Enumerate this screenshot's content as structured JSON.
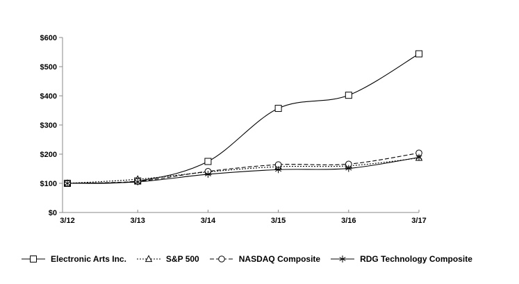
{
  "chart_data": {
    "type": "line",
    "title": "",
    "x_labels": [
      "3/12",
      "3/13",
      "3/14",
      "3/15",
      "3/16",
      "3/17"
    ],
    "y_ticks": [
      0,
      100,
      200,
      300,
      400,
      500,
      600
    ],
    "y_tick_prefix": "$",
    "ylim": [
      0,
      600
    ],
    "grid": false,
    "legend_position": "bottom",
    "colors": {
      "axis": "#888888",
      "line": "#000000",
      "text": "#000000",
      "marker_fill": "#ffffff"
    },
    "series": [
      {
        "name": "Electronic Arts Inc.",
        "marker": "square",
        "line_style": "solid",
        "values": [
          100,
          108,
          175,
          357,
          402,
          544
        ]
      },
      {
        "name": "S&P 500",
        "marker": "triangle",
        "line_style": "dotted",
        "values": [
          100,
          114,
          139,
          157,
          160,
          187
        ]
      },
      {
        "name": "NASDAQ Composite",
        "marker": "circle",
        "line_style": "dashed",
        "values": [
          100,
          107,
          141,
          164,
          166,
          204
        ]
      },
      {
        "name": "RDG Technology Composite",
        "marker": "asterisk",
        "line_style": "solid",
        "values": [
          100,
          105,
          131,
          147,
          151,
          189
        ]
      }
    ]
  }
}
